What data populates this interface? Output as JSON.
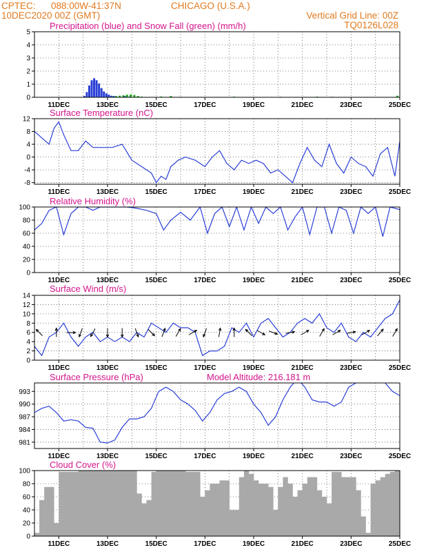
{
  "header": {
    "source": "CPTEC:",
    "location": "088:00W-41:37N",
    "city": "CHICAGO (U.S.A.)",
    "date": "10DEC2020 00Z (GMT)",
    "grid_note": "Vertical Grid Line: 00Z",
    "code": "TQ0126L028"
  },
  "colors": {
    "header": "#e07a1f",
    "title": "#d4148c",
    "line": "#2a3fd6",
    "snow": "#22aa22",
    "cloud": "#a9a9a9"
  },
  "x_axis": {
    "start": "10DEC2020 00Z",
    "end": "25DEC2020 00Z",
    "day_min": 0,
    "day_max": 15,
    "tick_days": [
      1,
      3,
      5,
      7,
      9,
      11,
      13,
      15
    ],
    "tick_labels": [
      "11DEC",
      "13DEC",
      "15DEC",
      "17DEC",
      "19DEC",
      "21DEC",
      "23DEC",
      "25DEC"
    ]
  },
  "chart_data": [
    {
      "type": "bar",
      "title": "Precipitation (blue) and Snow Fall (green) (mm/h)",
      "ylim": [
        0,
        5
      ],
      "yticks": [
        0,
        1,
        2,
        3,
        4,
        5
      ],
      "series": [
        {
          "name": "precipitation",
          "x": [
            2.05,
            2.15,
            2.25,
            2.35,
            2.45,
            2.55,
            2.65,
            2.75,
            2.85,
            2.95,
            3.05,
            3.15,
            3.25,
            3.35,
            3.5,
            3.7,
            3.9,
            4.1
          ],
          "values": [
            0.1,
            0.4,
            0.9,
            1.3,
            1.45,
            1.3,
            1.05,
            0.7,
            0.45,
            0.3,
            0.2,
            0.12,
            0.1,
            0.06,
            0.08,
            0.1,
            0.05,
            0.03
          ]
        },
        {
          "name": "snowfall",
          "x": [
            3.2,
            3.35,
            3.5,
            3.65,
            3.8,
            3.95,
            4.1,
            4.25,
            4.4,
            5.2,
            5.6,
            6.0,
            7.5,
            8.2,
            10.1,
            11.6,
            12.2,
            14.9
          ],
          "values": [
            0.05,
            0.1,
            0.12,
            0.15,
            0.2,
            0.22,
            0.18,
            0.1,
            0.05,
            0.06,
            0.1,
            0.04,
            0.03,
            0.05,
            0.04,
            0.05,
            0.04,
            0.12
          ]
        }
      ]
    },
    {
      "type": "line",
      "title": "Surface Temperature (nC)",
      "ylim": [
        -8.5,
        12
      ],
      "yticks": [
        -8,
        -4,
        0,
        4,
        8,
        12
      ],
      "x": [
        0,
        0.3,
        0.6,
        0.8,
        1.0,
        1.2,
        1.5,
        1.8,
        2.1,
        2.4,
        2.8,
        3.2,
        3.6,
        4.0,
        4.4,
        4.8,
        5.0,
        5.2,
        5.4,
        5.6,
        5.9,
        6.2,
        6.6,
        7.0,
        7.3,
        7.6,
        7.9,
        8.2,
        8.5,
        8.8,
        9.1,
        9.4,
        9.7,
        10.0,
        10.3,
        10.6,
        10.9,
        11.2,
        11.5,
        11.8,
        12.1,
        12.4,
        12.7,
        13.0,
        13.3,
        13.6,
        13.9,
        14.2,
        14.5,
        14.8,
        15.0
      ],
      "values": [
        8,
        6,
        4,
        9,
        11,
        7,
        2,
        2,
        5,
        3,
        3,
        3,
        4,
        -1,
        -3,
        -5,
        -8,
        -6,
        -7,
        -3,
        -1,
        0,
        -1,
        -3,
        0,
        2,
        -2,
        -4,
        -1,
        -2,
        -1,
        -2,
        -5,
        -4,
        -6,
        -8,
        -2,
        3,
        -1,
        -3,
        4,
        -2,
        -5,
        0,
        -2,
        -3,
        -6,
        1,
        3,
        -6,
        5
      ],
      "series": [
        {
          "values": [
            8,
            6,
            4,
            9,
            11,
            7,
            2,
            2,
            5,
            3,
            3,
            3,
            4,
            -1,
            -3,
            -5,
            -8,
            -6,
            -7,
            -3,
            -1,
            0,
            -1,
            -3,
            0,
            2,
            -2,
            -4,
            -1,
            -2,
            -1,
            -2,
            -5,
            -4,
            -6,
            -8,
            -2,
            3,
            -1,
            -3,
            4,
            -2,
            -5,
            0,
            -2,
            -3,
            -6,
            1,
            3,
            -6,
            5
          ]
        }
      ]
    },
    {
      "type": "line",
      "title": "Relative Humidity (%)",
      "ylim": [
        0,
        100
      ],
      "yticks": [
        0,
        20,
        40,
        60,
        80,
        100
      ],
      "x": [
        0,
        0.3,
        0.6,
        0.9,
        1.2,
        1.5,
        1.8,
        2.1,
        2.4,
        2.7,
        3.0,
        3.4,
        3.8,
        4.2,
        4.6,
        5.0,
        5.3,
        5.6,
        6.0,
        6.4,
        6.8,
        7.1,
        7.4,
        7.7,
        8.0,
        8.3,
        8.6,
        8.9,
        9.2,
        9.5,
        9.8,
        10.1,
        10.4,
        10.7,
        11.0,
        11.3,
        11.6,
        11.9,
        12.2,
        12.5,
        12.8,
        13.1,
        13.4,
        13.7,
        14.0,
        14.3,
        14.6,
        15.0
      ],
      "values": [
        65,
        75,
        95,
        100,
        58,
        90,
        100,
        100,
        95,
        100,
        100,
        100,
        100,
        98,
        95,
        90,
        65,
        80,
        92,
        80,
        100,
        60,
        90,
        100,
        70,
        100,
        65,
        100,
        75,
        100,
        90,
        100,
        65,
        85,
        100,
        58,
        100,
        100,
        60,
        100,
        95,
        60,
        100,
        90,
        100,
        55,
        100,
        96
      ],
      "series": [
        {
          "values": [
            65,
            75,
            95,
            100,
            58,
            90,
            100,
            100,
            95,
            100,
            100,
            100,
            100,
            98,
            95,
            90,
            65,
            80,
            92,
            80,
            100,
            60,
            90,
            100,
            70,
            100,
            65,
            100,
            75,
            100,
            90,
            100,
            65,
            85,
            100,
            58,
            100,
            100,
            60,
            100,
            95,
            60,
            100,
            90,
            100,
            55,
            100,
            96
          ]
        }
      ]
    },
    {
      "type": "line",
      "title": "Surface Wind (m/s)",
      "ylim": [
        0,
        14
      ],
      "yticks": [
        0,
        2,
        4,
        6,
        8,
        10,
        12,
        14
      ],
      "x": [
        0,
        0.3,
        0.6,
        0.9,
        1.2,
        1.5,
        1.8,
        2.1,
        2.4,
        2.7,
        3.0,
        3.3,
        3.6,
        3.9,
        4.2,
        4.5,
        4.8,
        5.1,
        5.4,
        5.7,
        6.0,
        6.3,
        6.6,
        6.9,
        7.2,
        7.5,
        7.8,
        8.1,
        8.4,
        8.7,
        9.0,
        9.3,
        9.6,
        9.9,
        10.2,
        10.5,
        10.8,
        11.1,
        11.4,
        11.7,
        12.0,
        12.3,
        12.6,
        12.9,
        13.2,
        13.5,
        13.8,
        14.1,
        14.4,
        14.7,
        15.0
      ],
      "values": [
        3,
        1,
        5,
        6,
        8,
        5,
        3,
        5,
        6,
        4,
        5,
        4,
        5,
        4,
        6,
        5,
        8,
        7,
        6,
        8,
        7,
        7,
        6,
        1,
        2,
        2,
        3,
        7,
        6,
        8,
        5,
        8,
        9,
        7,
        5,
        6,
        8,
        9,
        8,
        10,
        7,
        6,
        8,
        5,
        4,
        6,
        5,
        7,
        9,
        10,
        13
      ],
      "series": [
        {
          "values": [
            3,
            1,
            5,
            6,
            8,
            5,
            3,
            5,
            6,
            4,
            5,
            4,
            5,
            4,
            6,
            5,
            8,
            7,
            6,
            8,
            7,
            7,
            6,
            1,
            2,
            2,
            3,
            7,
            6,
            8,
            5,
            8,
            9,
            7,
            5,
            6,
            8,
            9,
            8,
            10,
            7,
            6,
            8,
            5,
            4,
            6,
            5,
            7,
            9,
            10,
            13
          ]
        }
      ],
      "arrows": [
        {
          "day": 0.2,
          "dir": 315
        },
        {
          "day": 0.9,
          "dir": 0
        },
        {
          "day": 1.5,
          "dir": 90
        },
        {
          "day": 1.9,
          "dir": 200
        },
        {
          "day": 2.4,
          "dir": 210
        },
        {
          "day": 3.0,
          "dir": 180
        },
        {
          "day": 3.6,
          "dir": 180
        },
        {
          "day": 4.2,
          "dir": 160
        },
        {
          "day": 4.8,
          "dir": 135
        },
        {
          "day": 5.3,
          "dir": 20
        },
        {
          "day": 5.9,
          "dir": 30
        },
        {
          "day": 6.5,
          "dir": 60
        },
        {
          "day": 7.0,
          "dir": 200
        },
        {
          "day": 7.6,
          "dir": 10
        },
        {
          "day": 8.2,
          "dir": 0
        },
        {
          "day": 8.8,
          "dir": 315
        },
        {
          "day": 9.3,
          "dir": 120
        },
        {
          "day": 9.8,
          "dir": 110
        },
        {
          "day": 10.5,
          "dir": 80
        },
        {
          "day": 11.1,
          "dir": 60
        },
        {
          "day": 11.8,
          "dir": 30
        },
        {
          "day": 12.4,
          "dir": 60
        },
        {
          "day": 13.0,
          "dir": 80
        },
        {
          "day": 13.6,
          "dir": 60
        },
        {
          "day": 14.2,
          "dir": 40
        },
        {
          "day": 14.8,
          "dir": 30
        }
      ]
    },
    {
      "type": "line",
      "title": "Surface Pressure (hPa)",
      "annotation": "Model Altitude: 216.181 m",
      "ylim": [
        979.5,
        995
      ],
      "yticks": [
        981,
        984,
        987,
        990,
        993
      ],
      "x": [
        0,
        0.3,
        0.6,
        0.9,
        1.2,
        1.5,
        1.8,
        2.1,
        2.4,
        2.7,
        3.0,
        3.3,
        3.6,
        3.9,
        4.2,
        4.5,
        4.8,
        5.1,
        5.4,
        5.7,
        6.0,
        6.3,
        6.6,
        6.9,
        7.2,
        7.5,
        7.8,
        8.1,
        8.4,
        8.7,
        9.0,
        9.3,
        9.6,
        9.9,
        10.2,
        10.5,
        10.8,
        11.1,
        11.4,
        11.7,
        12.0,
        12.3,
        12.6,
        12.9,
        13.2,
        13.5,
        13.8,
        14.1,
        14.4,
        14.7,
        15.0
      ],
      "values": [
        988,
        989,
        989.5,
        988,
        986,
        986.3,
        986,
        984.5,
        984.3,
        981,
        980.8,
        981.5,
        984.5,
        986.5,
        986.5,
        987,
        989,
        993,
        994,
        993,
        991,
        990,
        988.5,
        986,
        988,
        991,
        992.5,
        993,
        994,
        993,
        990,
        988,
        985,
        987,
        991,
        994,
        996,
        994,
        991,
        990.5,
        990.5,
        989.5,
        990.5,
        994,
        995,
        996,
        997,
        998,
        995,
        993,
        992
      ],
      "series": [
        {
          "values": [
            988,
            989,
            989.5,
            988,
            986,
            986.3,
            986,
            984.5,
            984.3,
            981,
            980.8,
            981.5,
            984.5,
            986.5,
            986.5,
            987,
            989,
            993,
            994,
            993,
            991,
            990,
            988.5,
            986,
            988,
            991,
            992.5,
            993,
            994,
            993,
            990,
            988,
            985,
            987,
            991,
            994,
            996,
            994,
            991,
            990.5,
            990.5,
            989.5,
            990.5,
            994,
            995,
            996,
            997,
            998,
            995,
            993,
            992
          ]
        }
      ]
    },
    {
      "type": "bar",
      "title": "Cloud Cover (%)",
      "ylim": [
        0,
        100
      ],
      "yticks": [
        0,
        20,
        40,
        60,
        80,
        100
      ],
      "x": [
        0,
        0.2,
        0.4,
        0.6,
        0.8,
        1.0,
        1.2,
        1.4,
        1.6,
        1.8,
        2.0,
        2.2,
        2.4,
        2.6,
        2.8,
        3.0,
        3.2,
        3.4,
        3.6,
        3.8,
        4.0,
        4.2,
        4.4,
        4.6,
        4.8,
        5.0,
        5.2,
        5.4,
        5.6,
        5.8,
        6.0,
        6.2,
        6.4,
        6.6,
        6.8,
        7.0,
        7.2,
        7.4,
        7.6,
        7.8,
        8.0,
        8.2,
        8.4,
        8.6,
        8.8,
        9.0,
        9.2,
        9.4,
        9.6,
        9.8,
        10.0,
        10.2,
        10.4,
        10.6,
        10.8,
        11.0,
        11.2,
        11.4,
        11.6,
        11.8,
        12.0,
        12.2,
        12.4,
        12.6,
        12.8,
        13.0,
        13.2,
        13.4,
        13.6,
        13.8,
        14.0,
        14.2,
        14.4,
        14.6,
        14.8
      ],
      "values": [
        5,
        55,
        75,
        75,
        20,
        98,
        98,
        98,
        98,
        100,
        100,
        100,
        100,
        100,
        100,
        100,
        100,
        100,
        100,
        100,
        100,
        65,
        50,
        55,
        98,
        100,
        100,
        100,
        100,
        100,
        100,
        98,
        98,
        98,
        60,
        70,
        80,
        80,
        85,
        85,
        40,
        40,
        90,
        100,
        95,
        85,
        80,
        80,
        75,
        40,
        75,
        90,
        80,
        60,
        70,
        80,
        90,
        90,
        70,
        60,
        50,
        98,
        98,
        90,
        90,
        90,
        70,
        30,
        5,
        80,
        85,
        90,
        95,
        98,
        100
      ],
      "series": [
        {
          "values": [
            5,
            55,
            75,
            75,
            20,
            98,
            98,
            98,
            98,
            100,
            100,
            100,
            100,
            100,
            100,
            100,
            100,
            100,
            100,
            100,
            100,
            65,
            50,
            55,
            98,
            100,
            100,
            100,
            100,
            100,
            100,
            98,
            98,
            98,
            60,
            70,
            80,
            80,
            85,
            85,
            40,
            40,
            90,
            100,
            95,
            85,
            80,
            80,
            75,
            40,
            75,
            90,
            80,
            60,
            70,
            80,
            90,
            90,
            70,
            60,
            50,
            98,
            98,
            90,
            90,
            90,
            70,
            30,
            5,
            80,
            85,
            90,
            95,
            98,
            100
          ]
        }
      ]
    }
  ]
}
